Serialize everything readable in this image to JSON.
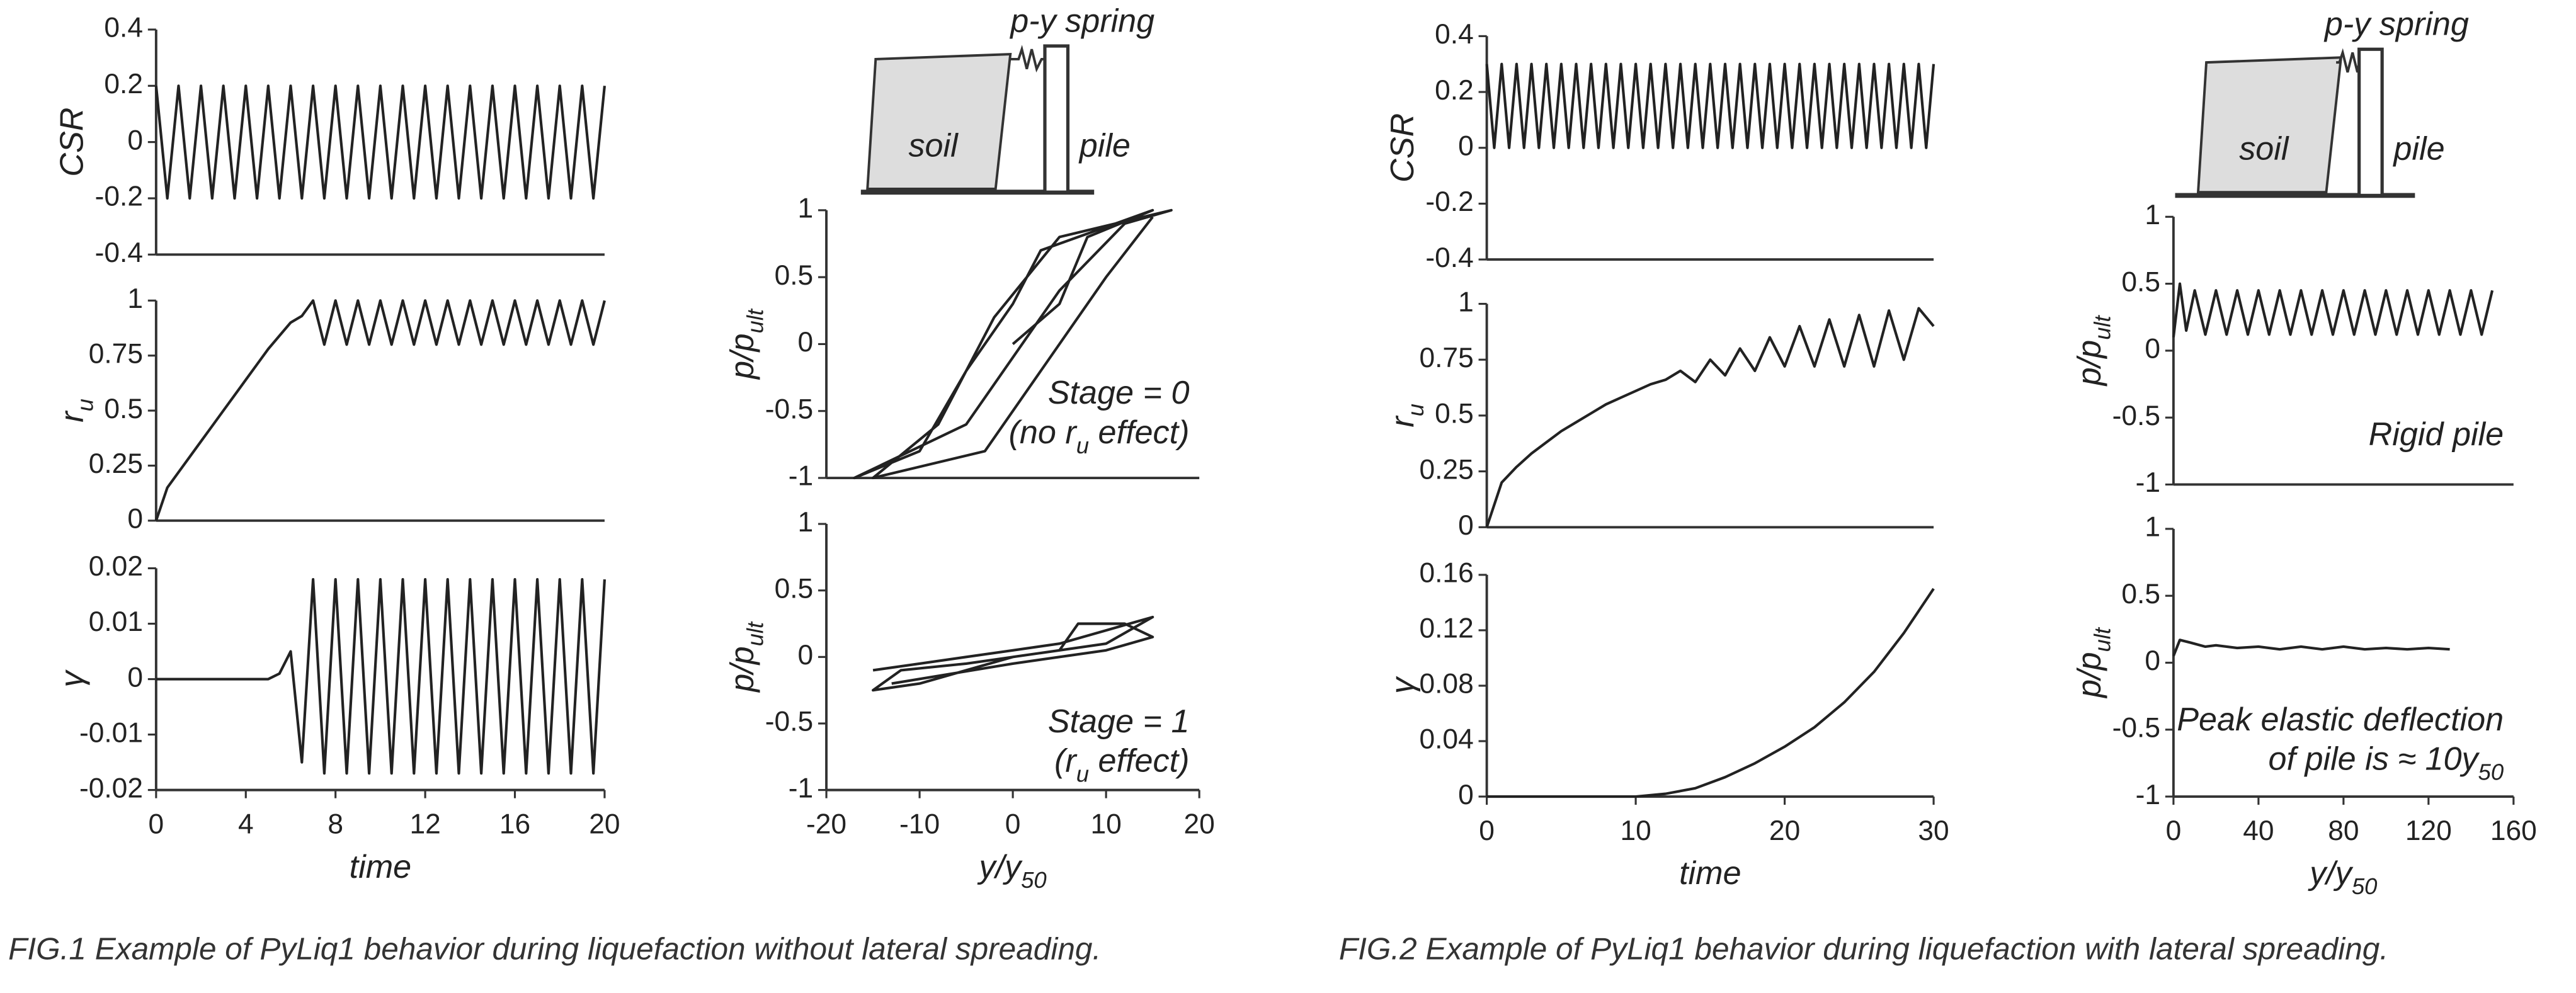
{
  "chart_data": [
    {
      "type": "line",
      "ylabel": [
        "CSR"
      ],
      "xlim": [
        0,
        20
      ],
      "ylim": [
        -0.4,
        0.4
      ],
      "yticks": [
        -0.4,
        -0.2,
        0,
        0.2,
        0.4
      ],
      "color": "#222222",
      "x": [
        0,
        0.5,
        1,
        1.5,
        2,
        2.5,
        3,
        3.5,
        4,
        4.5,
        5,
        5.5,
        6,
        6.5,
        7,
        7.5,
        8,
        8.5,
        9,
        9.5,
        10,
        10.5,
        11,
        11.5,
        12,
        12.5,
        13,
        13.5,
        14,
        14.5,
        15,
        15.5,
        16,
        16.5,
        17,
        17.5,
        18,
        18.5,
        19,
        19.5,
        20
      ],
      "values": [
        0.2,
        -0.2,
        0.2,
        -0.2,
        0.2,
        -0.2,
        0.2,
        -0.2,
        0.2,
        -0.2,
        0.2,
        -0.2,
        0.2,
        -0.2,
        0.2,
        -0.2,
        0.2,
        -0.2,
        0.2,
        -0.2,
        0.2,
        -0.2,
        0.2,
        -0.2,
        0.2,
        -0.2,
        0.2,
        -0.2,
        0.2,
        -0.2,
        0.2,
        -0.2,
        0.2,
        -0.2,
        0.2,
        -0.2,
        0.2,
        -0.2,
        0.2,
        -0.2,
        0.2
      ]
    },
    {
      "type": "line",
      "ylabel": [
        "r",
        "u"
      ],
      "xlim": [
        0,
        20
      ],
      "ylim": [
        0,
        1
      ],
      "yticks": [
        0,
        0.25,
        0.5,
        0.75,
        1
      ],
      "color": "#222222",
      "x": [
        0,
        0.5,
        1,
        1.5,
        2,
        2.5,
        3,
        3.5,
        4,
        4.5,
        5,
        5.5,
        6,
        6.5,
        7,
        7.5,
        8,
        8.5,
        9,
        9.5,
        10,
        10.5,
        11,
        11.5,
        12,
        12.5,
        13,
        13.5,
        14,
        14.5,
        15,
        15.5,
        16,
        16.5,
        17,
        17.5,
        18,
        18.5,
        19,
        19.5,
        20
      ],
      "values": [
        0,
        0.15,
        0.22,
        0.29,
        0.36,
        0.43,
        0.5,
        0.57,
        0.64,
        0.71,
        0.78,
        0.84,
        0.9,
        0.93,
        1,
        0.8,
        1,
        0.8,
        1,
        0.8,
        1,
        0.8,
        1,
        0.8,
        1,
        0.8,
        1,
        0.8,
        1,
        0.8,
        1,
        0.8,
        1,
        0.8,
        1,
        0.8,
        1,
        0.8,
        1,
        0.8,
        1
      ]
    },
    {
      "type": "line",
      "ylabel": [
        "γ"
      ],
      "xlabel": [
        "time"
      ],
      "xlim": [
        0,
        20
      ],
      "ylim": [
        -0.02,
        0.02
      ],
      "yticks": [
        -0.02,
        -0.01,
        0,
        0.01,
        0.02
      ],
      "xticks": [
        0,
        4,
        8,
        12,
        16,
        20
      ],
      "color": "#222222",
      "x": [
        0,
        0.5,
        1,
        1.5,
        2,
        2.5,
        3,
        3.5,
        4,
        4.5,
        5,
        5.5,
        6,
        6.5,
        7,
        7.5,
        8,
        8.5,
        9,
        9.5,
        10,
        10.5,
        11,
        11.5,
        12,
        12.5,
        13,
        13.5,
        14,
        14.5,
        15,
        15.5,
        16,
        16.5,
        17,
        17.5,
        18,
        18.5,
        19,
        19.5,
        20
      ],
      "values": [
        0,
        0,
        0,
        0,
        0,
        0,
        0,
        0,
        0,
        0,
        0,
        0.001,
        0.005,
        -0.015,
        0.018,
        -0.017,
        0.018,
        -0.017,
        0.018,
        -0.017,
        0.018,
        -0.017,
        0.018,
        -0.017,
        0.018,
        -0.017,
        0.018,
        -0.017,
        0.018,
        -0.017,
        0.018,
        -0.017,
        0.018,
        -0.017,
        0.018,
        -0.017,
        0.018,
        -0.017,
        0.018,
        -0.017,
        0.018
      ]
    },
    {
      "type": "line",
      "ylabel": [
        "p/p",
        "ult"
      ],
      "xlim": [
        -20,
        20
      ],
      "ylim": [
        -1,
        1
      ],
      "yticks": [
        -1,
        -0.5,
        0,
        0.5,
        1
      ],
      "color": "#222222",
      "annotations": [
        [
          "Stage = 0"
        ],
        [
          "(no r",
          "u",
          " effect)"
        ]
      ],
      "x": [
        0,
        5,
        8,
        15,
        3,
        0,
        -5,
        -10,
        -17,
        -5,
        0,
        5,
        12,
        17,
        5,
        -2,
        -8,
        -15,
        -3,
        3,
        10,
        15
      ],
      "values": [
        0,
        0.3,
        0.8,
        1,
        0.7,
        0.3,
        -0.2,
        -0.8,
        -1,
        -0.6,
        -0.1,
        0.4,
        0.9,
        1,
        0.8,
        0.2,
        -0.6,
        -1,
        -0.8,
        -0.2,
        0.5,
        0.95
      ]
    },
    {
      "type": "line",
      "ylabel": [
        "p/p",
        "ult"
      ],
      "xlabel": [
        "y/y",
        "50"
      ],
      "xlim": [
        -20,
        20
      ],
      "ylim": [
        -1,
        1
      ],
      "yticks": [
        -1,
        -0.5,
        0,
        0.5,
        1
      ],
      "xticks": [
        -20,
        -10,
        0,
        10,
        20
      ],
      "color": "#222222",
      "annotations": [
        [
          "Stage = 1"
        ],
        [
          "(r",
          "u",
          " effect)"
        ]
      ],
      "x": [
        -15,
        -10,
        0,
        5,
        10,
        15,
        10,
        0,
        -10,
        -15,
        -12,
        -5,
        5,
        7,
        12,
        15,
        10,
        0,
        -13
      ],
      "values": [
        -0.1,
        -0.05,
        0.05,
        0.1,
        0.2,
        0.3,
        0.1,
        0,
        -0.2,
        -0.25,
        -0.1,
        -0.05,
        0.05,
        0.25,
        0.25,
        0.15,
        0.05,
        -0.05,
        -0.2
      ]
    },
    {
      "type": "line",
      "ylabel": [
        "CSR"
      ],
      "xlim": [
        0,
        30
      ],
      "ylim": [
        -0.4,
        0.4
      ],
      "yticks": [
        -0.4,
        -0.2,
        0,
        0.2,
        0.4
      ],
      "color": "#222222",
      "x": [
        0,
        0.5,
        1,
        1.5,
        2,
        2.5,
        3,
        3.5,
        4,
        4.5,
        5,
        5.5,
        6,
        6.5,
        7,
        7.5,
        8,
        8.5,
        9,
        9.5,
        10,
        10.5,
        11,
        11.5,
        12,
        12.5,
        13,
        13.5,
        14,
        14.5,
        15,
        15.5,
        16,
        16.5,
        17,
        17.5,
        18,
        18.5,
        19,
        19.5,
        20,
        20.5,
        21,
        21.5,
        22,
        22.5,
        23,
        23.5,
        24,
        24.5,
        25,
        25.5,
        26,
        26.5,
        27,
        27.5,
        28,
        28.5,
        29,
        29.5,
        30
      ],
      "values": [
        0.3,
        0,
        0.3,
        0,
        0.3,
        0,
        0.3,
        0,
        0.3,
        0,
        0.3,
        0,
        0.3,
        0,
        0.3,
        0,
        0.3,
        0,
        0.3,
        0,
        0.3,
        0,
        0.3,
        0,
        0.3,
        0,
        0.3,
        0,
        0.3,
        0,
        0.3,
        0,
        0.3,
        0,
        0.3,
        0,
        0.3,
        0,
        0.3,
        0,
        0.3,
        0,
        0.3,
        0,
        0.3,
        0,
        0.3,
        0,
        0.3,
        0,
        0.3,
        0,
        0.3,
        0,
        0.3,
        0,
        0.3,
        0,
        0.3,
        0,
        0.3
      ]
    },
    {
      "type": "line",
      "ylabel": [
        "r",
        "u"
      ],
      "xlim": [
        0,
        30
      ],
      "ylim": [
        0,
        1
      ],
      "yticks": [
        0,
        0.25,
        0.5,
        0.75,
        1
      ],
      "color": "#222222",
      "x": [
        0,
        1,
        2,
        3,
        4,
        5,
        6,
        7,
        8,
        9,
        10,
        11,
        12,
        13,
        14,
        15,
        16,
        17,
        18,
        19,
        20,
        21,
        22,
        23,
        24,
        25,
        26,
        27,
        28,
        29,
        30
      ],
      "values": [
        0,
        0.2,
        0.27,
        0.33,
        0.38,
        0.43,
        0.47,
        0.51,
        0.55,
        0.58,
        0.61,
        0.64,
        0.66,
        0.7,
        0.65,
        0.75,
        0.68,
        0.8,
        0.7,
        0.85,
        0.72,
        0.9,
        0.72,
        0.93,
        0.72,
        0.95,
        0.72,
        0.97,
        0.75,
        0.98,
        0.9
      ]
    },
    {
      "type": "line",
      "ylabel": [
        "γ"
      ],
      "xlabel": [
        "time"
      ],
      "xlim": [
        0,
        30
      ],
      "ylim": [
        0,
        0.16
      ],
      "yticks": [
        0,
        0.04,
        0.08,
        0.12,
        0.16
      ],
      "xticks": [
        0,
        10,
        20,
        30
      ],
      "color": "#222222",
      "x": [
        0,
        5,
        10,
        12,
        14,
        16,
        18,
        20,
        22,
        24,
        26,
        28,
        30
      ],
      "values": [
        0,
        0,
        0,
        0.002,
        0.006,
        0.014,
        0.024,
        0.036,
        0.05,
        0.068,
        0.09,
        0.118,
        0.15
      ]
    },
    {
      "type": "line",
      "ylabel": [
        "p/p",
        "ult"
      ],
      "xlim": [
        0,
        160
      ],
      "ylim": [
        -1,
        1
      ],
      "yticks": [
        -1,
        -0.5,
        0,
        0.5,
        1
      ],
      "color": "#222222",
      "annotations": [
        [
          "Rigid pile"
        ]
      ],
      "x": [
        0,
        3,
        6,
        10,
        15,
        20,
        25,
        30,
        35,
        40,
        45,
        50,
        55,
        60,
        65,
        70,
        75,
        80,
        85,
        90,
        95,
        100,
        105,
        110,
        115,
        120,
        125,
        130,
        135,
        140,
        145,
        150
      ],
      "values": [
        0.1,
        0.5,
        0.15,
        0.45,
        0.12,
        0.45,
        0.12,
        0.45,
        0.12,
        0.45,
        0.12,
        0.45,
        0.12,
        0.45,
        0.12,
        0.45,
        0.12,
        0.45,
        0.12,
        0.45,
        0.12,
        0.45,
        0.12,
        0.45,
        0.12,
        0.45,
        0.12,
        0.45,
        0.12,
        0.45,
        0.12,
        0.45
      ]
    },
    {
      "type": "line",
      "ylabel": [
        "p/p",
        "ult"
      ],
      "xlabel": [
        "y/y",
        "50"
      ],
      "xlim": [
        0,
        160
      ],
      "ylim": [
        -1,
        1
      ],
      "yticks": [
        -1,
        -0.5,
        0,
        0.5,
        1
      ],
      "xticks": [
        0,
        40,
        80,
        120,
        160
      ],
      "color": "#222222",
      "annotations": [
        [
          "Peak elastic deflection"
        ],
        [
          "of pile is ≈ 10y",
          "50"
        ]
      ],
      "x": [
        0,
        3,
        8,
        15,
        20,
        30,
        40,
        50,
        60,
        70,
        80,
        90,
        100,
        110,
        120,
        130
      ],
      "values": [
        0.05,
        0.17,
        0.15,
        0.12,
        0.13,
        0.11,
        0.12,
        0.1,
        0.12,
        0.1,
        0.12,
        0.1,
        0.11,
        0.1,
        0.11,
        0.1
      ]
    }
  ],
  "schematics": [
    {
      "spring": "p-y spring",
      "soil": "soil",
      "pile": "pile"
    },
    {
      "spring": "p-y spring",
      "soil": "soil",
      "pile": "pile"
    }
  ],
  "captions": [
    "FIG.1 Example of PyLiq1 behavior during liquefaction without lateral spreading.",
    "FIG.2 Example of PyLiq1 behavior during liquefaction with lateral spreading."
  ]
}
